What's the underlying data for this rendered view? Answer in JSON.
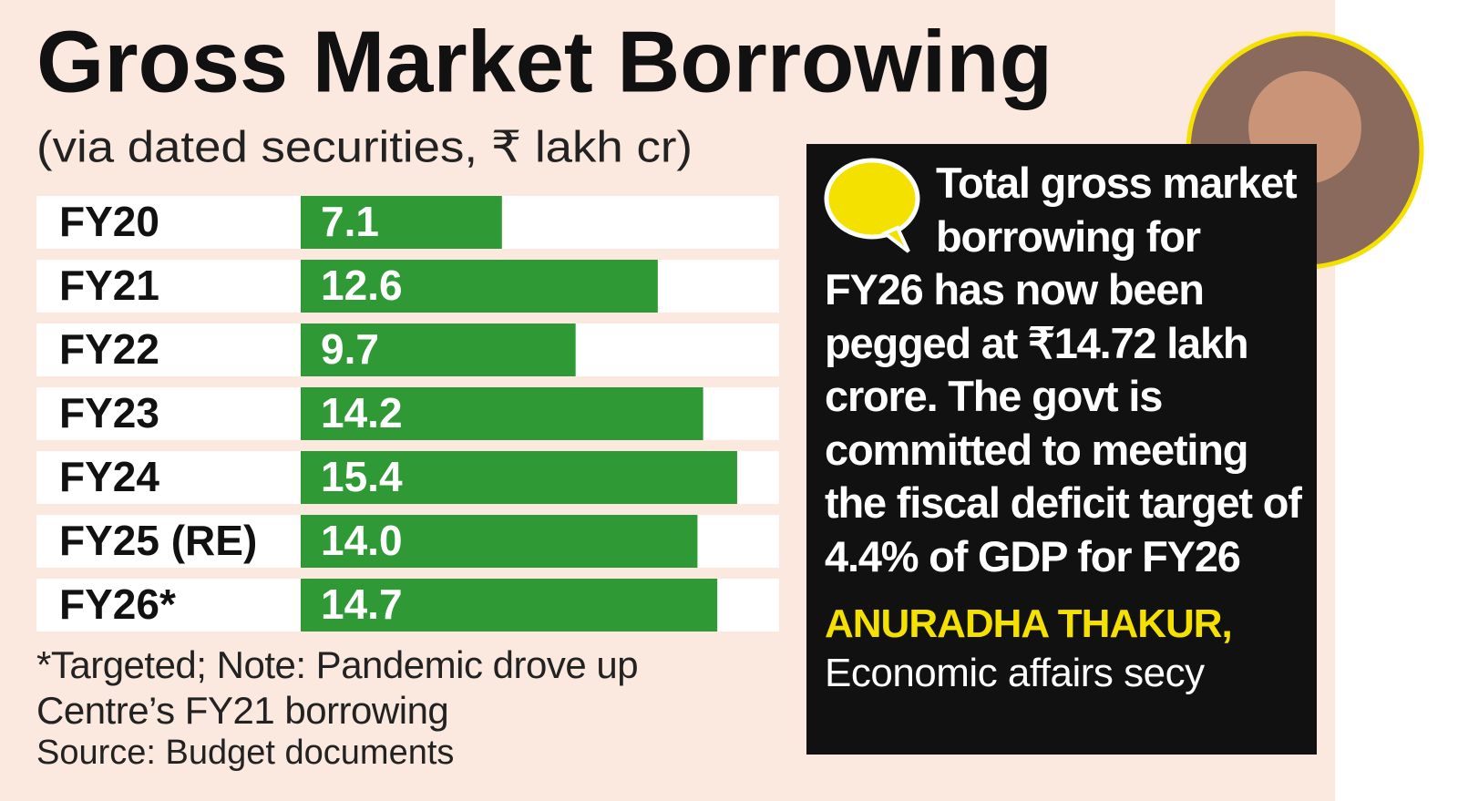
{
  "chart_data": {
    "type": "bar",
    "orientation": "horizontal",
    "title": "Gross Market Borrowing",
    "subtitle": "(via dated securities, ₹ lakh cr)",
    "categories": [
      "FY20",
      "FY21",
      "FY22",
      "FY23",
      "FY24",
      "FY25 (RE)",
      "FY26*"
    ],
    "values": [
      7.1,
      12.6,
      9.7,
      14.2,
      15.4,
      14.0,
      14.7
    ],
    "value_labels": [
      "7.1",
      "12.6",
      "9.7",
      "14.2",
      "15.4",
      "14.0",
      "14.7"
    ],
    "color": "#2f9a35",
    "footnote": "*Targeted; Note: Pandemic drove up Centre’s FY21 borrowing",
    "source": "Source: Budget documents",
    "quote": "Total gross market borrowing for FY26 has now been pegged at ₹14.72 lakh crore. The govt is committed to meeting the fiscal deficit target of 4.4% of GDP for FY26",
    "quote_author": "ANURADHA THAKUR,",
    "quote_role": "Economic affairs secy"
  }
}
